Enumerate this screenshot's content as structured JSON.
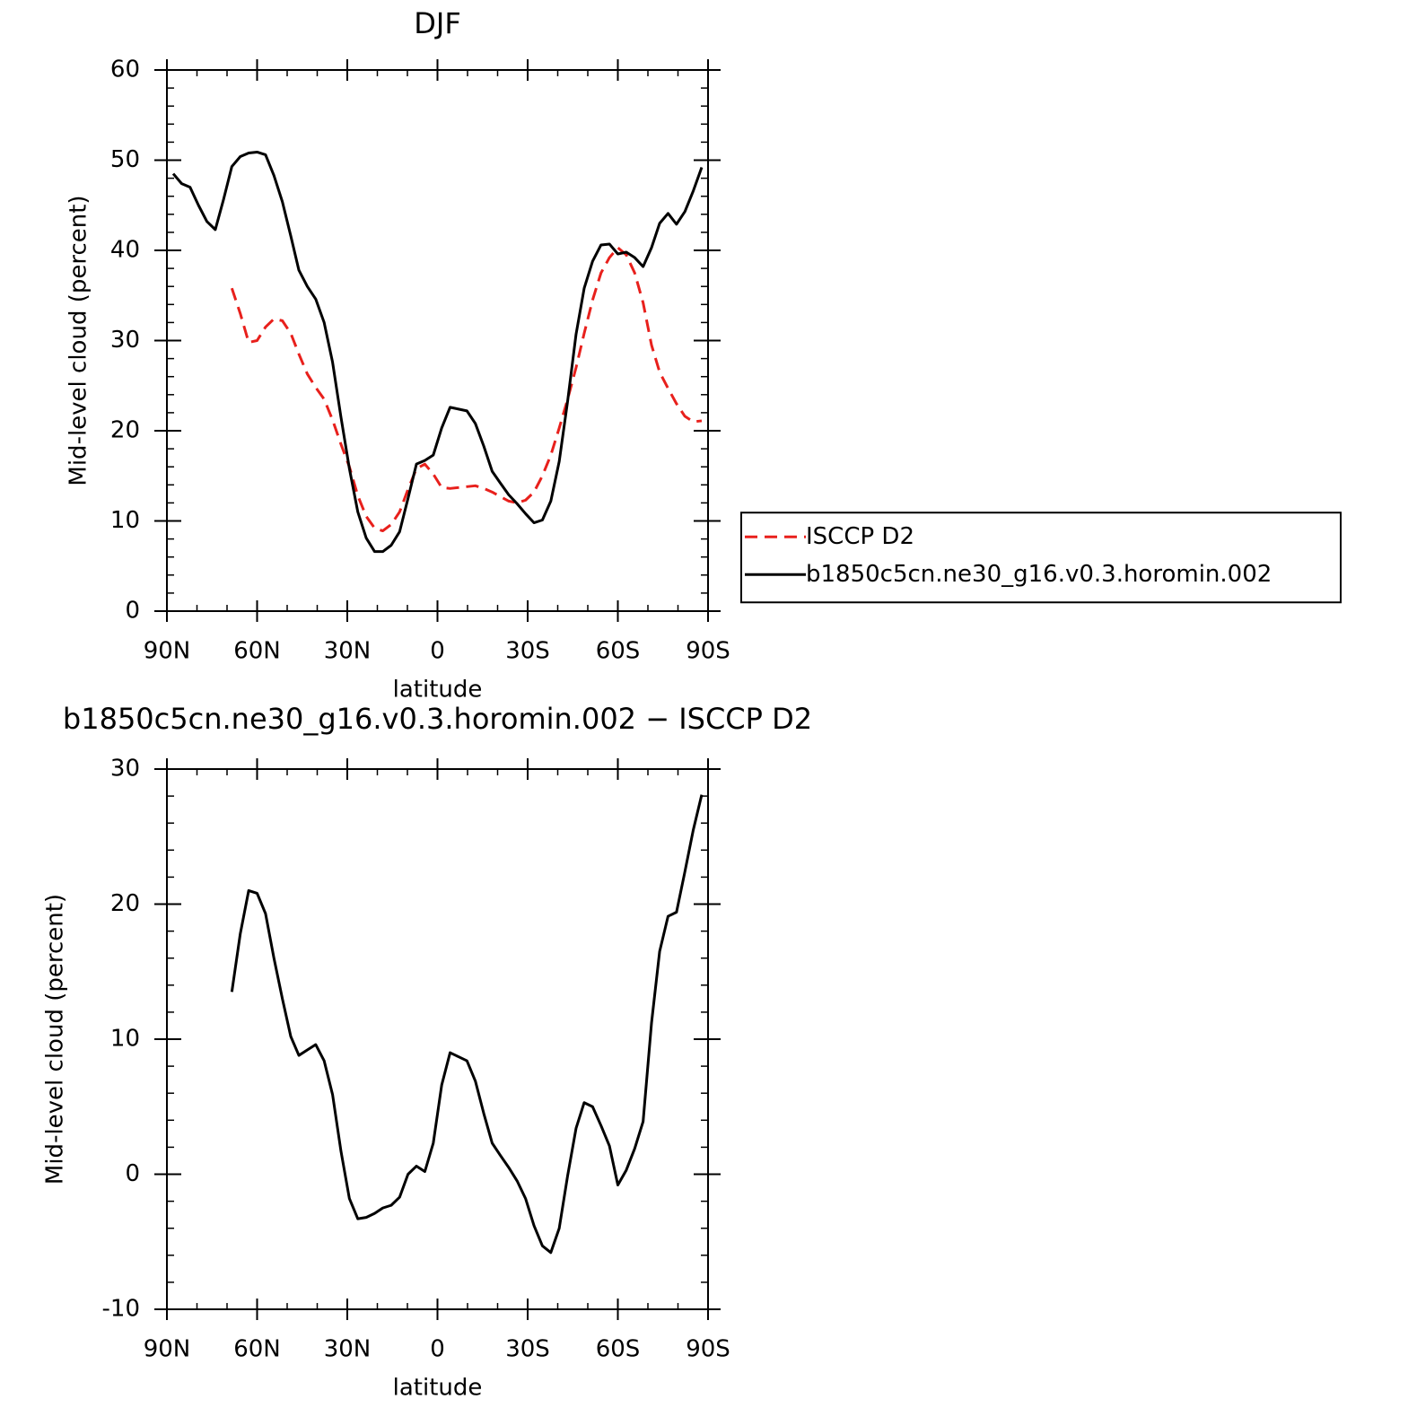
{
  "chart_data": [
    {
      "type": "line",
      "title": "DJF",
      "xlabel": "latitude",
      "ylabel": "Mid-level cloud (percent)",
      "x": [
        87.9,
        85.1,
        82.3,
        79.5,
        76.7,
        73.9,
        71.2,
        68.4,
        65.6,
        62.8,
        60.0,
        57.2,
        54.4,
        51.6,
        48.8,
        46.1,
        43.3,
        40.5,
        37.7,
        34.9,
        32.1,
        29.3,
        26.5,
        23.7,
        20.9,
        18.2,
        15.4,
        12.6,
        9.8,
        7.0,
        4.2,
        1.4,
        -1.4,
        -4.2,
        -7.0,
        -9.8,
        -12.6,
        -15.4,
        -18.2,
        -20.9,
        -23.7,
        -26.5,
        -29.3,
        -32.1,
        -34.9,
        -37.7,
        -40.5,
        -43.3,
        -46.1,
        -48.8,
        -51.6,
        -54.4,
        -57.2,
        -60.0,
        -62.8,
        -65.6,
        -68.4,
        -71.2,
        -73.9,
        -76.7,
        -79.5,
        -82.3,
        -85.1,
        -87.9
      ],
      "xlim": [
        90,
        -90
      ],
      "xticks": [
        {
          "value": 90,
          "label": "90N"
        },
        {
          "value": 60,
          "label": "60N"
        },
        {
          "value": 30,
          "label": "30N"
        },
        0,
        {
          "value": -30,
          "label": "30S"
        },
        {
          "value": -60,
          "label": "60S"
        },
        {
          "value": -90,
          "label": "90S"
        }
      ],
      "ylim": [
        0,
        60
      ],
      "yticks": [
        0,
        10,
        20,
        30,
        40,
        50,
        60
      ],
      "legend": "right",
      "series": [
        {
          "name": "ISCCP D2",
          "color": "#e8201c",
          "style": "dashed",
          "values": [
            null,
            null,
            null,
            null,
            null,
            null,
            null,
            35.8,
            33,
            29.8,
            30,
            31.5,
            32.4,
            32.2,
            30.8,
            28.5,
            26.3,
            24.8,
            23.5,
            21.2,
            18.5,
            16,
            12.8,
            10.5,
            9.2,
            8.9,
            9.6,
            11,
            13.5,
            15.8,
            16.3,
            15.2,
            13.7,
            13.6,
            13.7,
            13.8,
            13.9,
            13.6,
            13.2,
            12.7,
            12.2,
            12,
            12.3,
            13.2,
            15,
            17.3,
            20.3,
            23.5,
            27,
            30.8,
            34.5,
            37.5,
            39.2,
            40.3,
            39.5,
            37.5,
            34.2,
            29.5,
            26.5,
            24.7,
            23,
            21.6,
            21,
            21.1
          ]
        },
        {
          "name": "b1850c5cn.ne30_g16.v0.3.horomin.002",
          "color": "#000000",
          "style": "solid",
          "values": [
            48.5,
            47.4,
            47,
            45,
            43.2,
            42.3,
            45.6,
            49.3,
            50.4,
            50.8,
            50.9,
            50.6,
            48.3,
            45.4,
            41.6,
            37.8,
            36,
            34.6,
            32,
            27.6,
            21.5,
            15.8,
            11,
            8.1,
            6.6,
            6.6,
            7.3,
            8.8,
            12.5,
            16.3,
            16.7,
            17.3,
            20.3,
            22.6,
            22.4,
            22.2,
            20.8,
            18.3,
            15.5,
            14.2,
            12.9,
            11.9,
            10.8,
            9.8,
            10.1,
            12.2,
            16.6,
            23.3,
            30.7,
            35.8,
            38.8,
            40.6,
            40.7,
            39.6,
            39.8,
            39.2,
            38.2,
            40.3,
            43,
            44.1,
            42.9,
            44.3,
            46.6,
            49.2
          ]
        }
      ]
    },
    {
      "type": "line",
      "title": "b1850c5cn.ne30_g16.v0.3.horomin.002 − ISCCP D2",
      "xlabel": "latitude",
      "ylabel": "Mid-level cloud (percent)",
      "x": [
        87.9,
        85.1,
        82.3,
        79.5,
        76.7,
        73.9,
        71.2,
        68.4,
        65.6,
        62.8,
        60.0,
        57.2,
        54.4,
        51.6,
        48.8,
        46.1,
        43.3,
        40.5,
        37.7,
        34.9,
        32.1,
        29.3,
        26.5,
        23.7,
        20.9,
        18.2,
        15.4,
        12.6,
        9.8,
        7.0,
        4.2,
        1.4,
        -1.4,
        -4.2,
        -7.0,
        -9.8,
        -12.6,
        -15.4,
        -18.2,
        -20.9,
        -23.7,
        -26.5,
        -29.3,
        -32.1,
        -34.9,
        -37.7,
        -40.5,
        -43.3,
        -46.1,
        -48.8,
        -51.6,
        -54.4,
        -57.2,
        -60.0,
        -62.8,
        -65.6,
        -68.4,
        -71.2,
        -73.9,
        -76.7,
        -79.5,
        -82.3,
        -85.1,
        -87.9
      ],
      "xlim": [
        90,
        -90
      ],
      "xticks": [
        {
          "value": 90,
          "label": "90N"
        },
        {
          "value": 60,
          "label": "60N"
        },
        {
          "value": 30,
          "label": "30N"
        },
        0,
        {
          "value": -30,
          "label": "30S"
        },
        {
          "value": -60,
          "label": "60S"
        },
        {
          "value": -90,
          "label": "90S"
        }
      ],
      "ylim": [
        -10,
        30
      ],
      "yticks": [
        -10,
        0,
        10,
        20,
        30
      ],
      "series": [
        {
          "color": "#000000",
          "style": "solid",
          "values": [
            null,
            null,
            null,
            null,
            null,
            null,
            null,
            13.5,
            17.8,
            21,
            20.8,
            19.3,
            16,
            13,
            10.2,
            8.8,
            9.2,
            9.6,
            8.4,
            5.9,
            1.7,
            -1.8,
            -3.3,
            -3.2,
            -2.9,
            -2.5,
            -2.3,
            -1.7,
            0,
            0.6,
            0.2,
            2.3,
            6.6,
            9,
            8.7,
            8.4,
            6.9,
            4.5,
            2.3,
            1.4,
            0.5,
            -0.5,
            -1.8,
            -3.8,
            -5.3,
            -5.8,
            -4,
            -0.1,
            3.4,
            5.3,
            5,
            3.6,
            2.1,
            -0.8,
            0.3,
            1.9,
            3.9,
            11.2,
            16.5,
            19.1,
            19.4,
            22.4,
            25.5,
            28.1
          ]
        }
      ]
    }
  ]
}
